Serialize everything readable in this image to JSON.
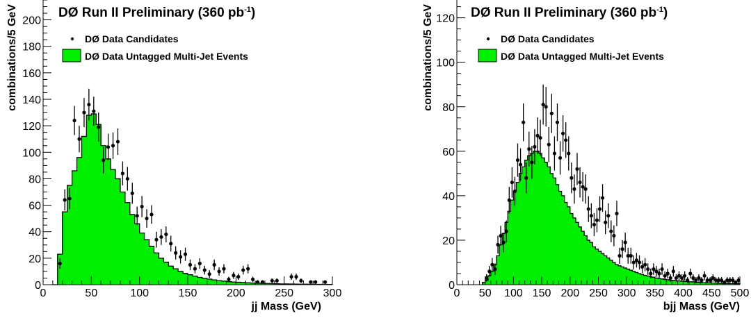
{
  "chart_data": [
    {
      "type": "histogram",
      "title": "DØ Run II Preliminary (360 pb",
      "title_sup": "-1",
      "title_close": ")",
      "xlabel": "jj Mass (GeV)",
      "ylabel": "combinations/5 GeV",
      "xlim": [
        0,
        300
      ],
      "ylim": [
        0,
        215
      ],
      "bin_width": 5,
      "xticks": [
        0,
        50,
        100,
        150,
        200,
        250,
        300
      ],
      "yticks": [
        0,
        20,
        40,
        60,
        80,
        100,
        120,
        140,
        160,
        180,
        200
      ],
      "colors": {
        "histogram_fill": "#00ee00",
        "histogram_line": "#000000",
        "points": "#000000"
      },
      "series": [
        {
          "name": "DØ Data Untagged Multi-Jet Events",
          "kind": "histogram",
          "x": [
            10,
            15,
            20,
            25,
            30,
            35,
            40,
            45,
            50,
            55,
            60,
            65,
            70,
            75,
            80,
            85,
            90,
            95,
            100,
            105,
            110,
            115,
            120,
            125,
            130,
            135,
            140,
            145,
            150,
            155,
            160,
            165,
            170,
            175,
            180,
            185,
            190,
            195,
            200,
            205,
            210,
            215,
            220,
            225,
            230,
            235,
            240,
            245,
            250,
            255,
            260,
            265,
            270,
            275,
            280,
            285,
            290,
            295
          ],
          "values": [
            0,
            23,
            55,
            75,
            86,
            96,
            112,
            128,
            129,
            121,
            105,
            95,
            87,
            80,
            70,
            62,
            53,
            46,
            39,
            34,
            29,
            24,
            20,
            17,
            14,
            12,
            10,
            8.5,
            7.5,
            6.5,
            5.5,
            4.8,
            4.2,
            3.6,
            3.1,
            2.7,
            2.3,
            2,
            1.8,
            1.6,
            1.4,
            1.2,
            1.1,
            1,
            0.9,
            0.8,
            0.7,
            0.6,
            0.55,
            0.5,
            0.45,
            0.4,
            0.35,
            0.3,
            0.28,
            0.25,
            0.22,
            0.2
          ]
        },
        {
          "name": "DØ Data Candidates",
          "kind": "points",
          "points": [
            [
              17.5,
              16,
              4
            ],
            [
              22.5,
              64,
              8
            ],
            [
              27.5,
              65,
              8
            ],
            [
              32.5,
              124,
              11
            ],
            [
              37.5,
              110,
              10
            ],
            [
              42.5,
              130,
              11
            ],
            [
              47.5,
              136,
              12
            ],
            [
              52.5,
              131,
              11
            ],
            [
              57.5,
              119,
              11
            ],
            [
              62.5,
              94,
              10
            ],
            [
              67.5,
              104,
              10
            ],
            [
              72.5,
              105,
              10
            ],
            [
              77.5,
              108,
              10
            ],
            [
              82.5,
              84,
              9
            ],
            [
              87.5,
              80,
              9
            ],
            [
              92.5,
              69,
              8
            ],
            [
              97.5,
              52,
              7
            ],
            [
              102.5,
              59,
              8
            ],
            [
              107.5,
              50,
              7
            ],
            [
              112.5,
              53,
              7
            ],
            [
              117.5,
              34,
              6
            ],
            [
              122.5,
              36,
              6
            ],
            [
              127.5,
              38,
              6
            ],
            [
              132.5,
              31,
              6
            ],
            [
              137.5,
              24,
              5
            ],
            [
              142.5,
              21,
              5
            ],
            [
              147.5,
              23,
              5
            ],
            [
              152.5,
              15,
              4
            ],
            [
              157.5,
              12,
              3.5
            ],
            [
              162.5,
              16,
              4
            ],
            [
              167.5,
              11,
              3.3
            ],
            [
              172.5,
              8,
              3
            ],
            [
              177.5,
              15,
              4
            ],
            [
              182.5,
              10,
              3.2
            ],
            [
              187.5,
              12,
              3.5
            ],
            [
              192.5,
              4,
              2
            ],
            [
              197.5,
              7,
              2.6
            ],
            [
              202.5,
              6,
              2.4
            ],
            [
              207.5,
              11,
              3.3
            ],
            [
              212.5,
              12,
              3.5
            ],
            [
              217.5,
              4,
              2
            ],
            [
              222.5,
              2,
              1.4
            ],
            [
              227.5,
              2,
              1.4
            ],
            [
              237.5,
              3,
              1.7
            ],
            [
              242.5,
              3,
              1.7
            ],
            [
              257.5,
              6,
              2.4
            ],
            [
              262.5,
              6,
              2.4
            ],
            [
              267.5,
              3,
              1.7
            ],
            [
              277.5,
              2,
              1.4
            ],
            [
              282.5,
              2,
              1.4
            ],
            [
              292.5,
              2,
              1.4
            ]
          ]
        }
      ]
    },
    {
      "type": "histogram",
      "title": "DØ Run II Preliminary (360 pb",
      "title_sup": "-1",
      "title_close": ")",
      "xlabel": "bjj Mass (GeV)",
      "ylabel": "combinations/5 GeV",
      "xlim": [
        0,
        500
      ],
      "ylim": [
        0,
        128
      ],
      "bin_width": 5,
      "xticks": [
        0,
        50,
        100,
        150,
        200,
        250,
        300,
        350,
        400,
        450,
        500
      ],
      "yticks": [
        0,
        20,
        40,
        60,
        80,
        100,
        120
      ],
      "colors": {
        "histogram_fill": "#00ee00",
        "histogram_line": "#000000",
        "points": "#000000"
      },
      "series": [
        {
          "name": "DØ Data Untagged Multi-Jet Events",
          "kind": "histogram",
          "x": [
            45,
            50,
            55,
            60,
            65,
            70,
            75,
            80,
            85,
            90,
            95,
            100,
            105,
            110,
            115,
            120,
            125,
            130,
            135,
            140,
            145,
            150,
            155,
            160,
            165,
            170,
            175,
            180,
            185,
            190,
            195,
            200,
            205,
            210,
            215,
            220,
            225,
            230,
            235,
            240,
            245,
            250,
            255,
            260,
            265,
            270,
            275,
            280,
            285,
            290,
            295,
            300,
            305,
            310,
            315,
            320,
            325,
            330,
            335,
            340,
            345,
            350,
            355,
            360,
            365,
            370,
            375,
            380,
            385,
            390,
            395,
            400,
            405,
            410,
            415,
            420,
            425,
            430,
            435,
            440,
            445,
            450,
            455,
            460,
            465,
            470,
            475,
            480,
            485,
            490,
            495
          ],
          "values": [
            1,
            2,
            4,
            6,
            9,
            13,
            18,
            23,
            28,
            33,
            38,
            42,
            46,
            50,
            53,
            56,
            58,
            59,
            60,
            60,
            59,
            57,
            55,
            53,
            50,
            48,
            45,
            42,
            40,
            37,
            35,
            32,
            30,
            28,
            26,
            24,
            22,
            20,
            19,
            17,
            16,
            15,
            14,
            13,
            12,
            11,
            10,
            9,
            8.5,
            8,
            7.5,
            7,
            6.5,
            6,
            5.5,
            5,
            4.6,
            4.2,
            3.9,
            3.6,
            3.3,
            3,
            2.8,
            2.6,
            2.4,
            2.2,
            2,
            1.9,
            1.8,
            1.7,
            1.6,
            1.5,
            1.4,
            1.3,
            1.2,
            1.1,
            1,
            0.95,
            0.9,
            0.85,
            0.8,
            0.75,
            0.7,
            0.65,
            0.6,
            0.55,
            0.5,
            0.48,
            0.46,
            0.44,
            0.42
          ]
        },
        {
          "name": "DØ Data Candidates",
          "kind": "points",
          "points": [
            [
              52.5,
              3,
              1.7
            ],
            [
              57.5,
              6,
              2.4
            ],
            [
              62.5,
              9,
              3
            ],
            [
              67.5,
              7,
              2.6
            ],
            [
              72.5,
              18,
              4
            ],
            [
              77.5,
              22,
              4.5
            ],
            [
              82.5,
              19,
              4.4
            ],
            [
              87.5,
              24,
              4.9
            ],
            [
              92.5,
              38,
              6
            ],
            [
              97.5,
              46,
              6.8
            ],
            [
              102.5,
              42,
              6.5
            ],
            [
              107.5,
              56,
              7.5
            ],
            [
              112.5,
              54,
              7.3
            ],
            [
              117.5,
              73,
              8.5
            ],
            [
              122.5,
              48,
              6.9
            ],
            [
              127.5,
              61,
              7.8
            ],
            [
              132.5,
              55,
              7.4
            ],
            [
              137.5,
              62,
              7.9
            ],
            [
              142.5,
              67,
              8.2
            ],
            [
              147.5,
              66,
              8.1
            ],
            [
              152.5,
              81,
              9
            ],
            [
              157.5,
              80,
              8.9
            ],
            [
              162.5,
              63,
              7.9
            ],
            [
              167.5,
              77,
              8.8
            ],
            [
              172.5,
              59,
              7.7
            ],
            [
              177.5,
              73,
              8.5
            ],
            [
              182.5,
              57,
              7.5
            ],
            [
              187.5,
              68,
              8.2
            ],
            [
              192.5,
              65,
              8
            ],
            [
              197.5,
              59,
              7.7
            ],
            [
              202.5,
              48,
              6.9
            ],
            [
              207.5,
              43,
              6.6
            ],
            [
              212.5,
              52,
              7.2
            ],
            [
              217.5,
              46,
              6.8
            ],
            [
              222.5,
              44,
              6.6
            ],
            [
              227.5,
              43,
              6.6
            ],
            [
              232.5,
              34,
              5.8
            ],
            [
              237.5,
              31,
              5.6
            ],
            [
              242.5,
              27,
              5.2
            ],
            [
              247.5,
              29,
              5.4
            ],
            [
              252.5,
              34,
              5.8
            ],
            [
              257.5,
              39,
              6.2
            ],
            [
              262.5,
              28,
              5.3
            ],
            [
              267.5,
              31,
              5.6
            ],
            [
              272.5,
              24,
              4.9
            ],
            [
              277.5,
              22,
              4.7
            ],
            [
              282.5,
              32,
              5.7
            ],
            [
              287.5,
              13,
              3.6
            ],
            [
              292.5,
              16,
              4
            ],
            [
              297.5,
              19,
              4.4
            ],
            [
              302.5,
              13,
              3.6
            ],
            [
              307.5,
              13,
              3.6
            ],
            [
              312.5,
              10,
              3.2
            ],
            [
              317.5,
              11,
              3.3
            ],
            [
              322.5,
              10,
              3.2
            ],
            [
              327.5,
              8,
              2.8
            ],
            [
              332.5,
              9,
              3
            ],
            [
              337.5,
              7,
              2.6
            ],
            [
              342.5,
              5,
              2.2
            ],
            [
              347.5,
              7,
              2.6
            ],
            [
              352.5,
              6,
              2.4
            ],
            [
              357.5,
              5,
              2.2
            ],
            [
              362.5,
              7,
              2.6
            ],
            [
              367.5,
              4,
              2
            ],
            [
              372.5,
              5,
              2.2
            ],
            [
              377.5,
              3,
              1.7
            ],
            [
              382.5,
              6,
              2.4
            ],
            [
              387.5,
              3,
              1.7
            ],
            [
              392.5,
              4,
              2
            ],
            [
              397.5,
              3,
              1.7
            ],
            [
              402.5,
              4,
              2
            ],
            [
              407.5,
              2,
              1.4
            ],
            [
              412.5,
              5,
              2.2
            ],
            [
              417.5,
              3,
              1.7
            ],
            [
              422.5,
              2,
              1.4
            ],
            [
              427.5,
              3,
              1.7
            ],
            [
              432.5,
              2,
              1.4
            ],
            [
              437.5,
              4,
              2
            ],
            [
              442.5,
              2,
              1.4
            ],
            [
              447.5,
              2,
              1.4
            ],
            [
              452.5,
              3,
              1.7
            ],
            [
              457.5,
              2,
              1.4
            ],
            [
              462.5,
              2,
              1.4
            ],
            [
              467.5,
              2,
              1.4
            ],
            [
              472.5,
              1,
              1
            ],
            [
              477.5,
              2,
              1.4
            ],
            [
              482.5,
              2,
              1.4
            ],
            [
              487.5,
              2,
              1.4
            ],
            [
              492.5,
              1,
              1
            ],
            [
              497.5,
              2,
              1.4
            ]
          ]
        }
      ]
    }
  ]
}
